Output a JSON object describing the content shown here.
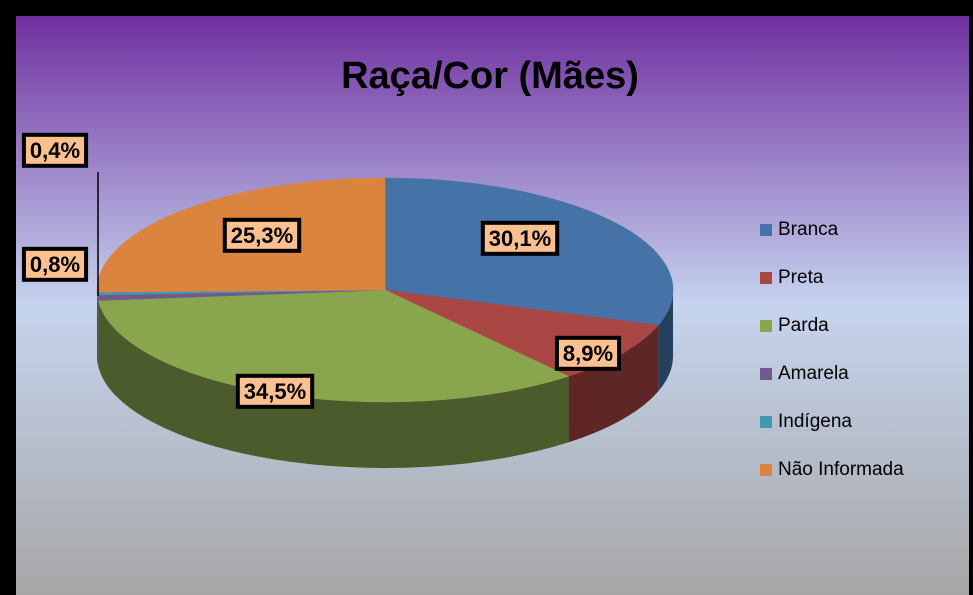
{
  "chart_data": {
    "type": "pie3d",
    "title": "Raça/Cor (Mães)",
    "categories": [
      "Branca",
      "Preta",
      "Parda",
      "Amarela",
      "Indígena",
      "Não Informada"
    ],
    "values": [
      30.1,
      8.9,
      34.5,
      0.8,
      0.4,
      25.3
    ],
    "value_labels": [
      "30,1%",
      "8,9%",
      "34,5%",
      "0,8%",
      "0,4%",
      "25,3%"
    ],
    "colors": [
      "#4572a7",
      "#aa4643",
      "#89a54e",
      "#71588f",
      "#4198af",
      "#db843d"
    ],
    "legend": "right"
  }
}
